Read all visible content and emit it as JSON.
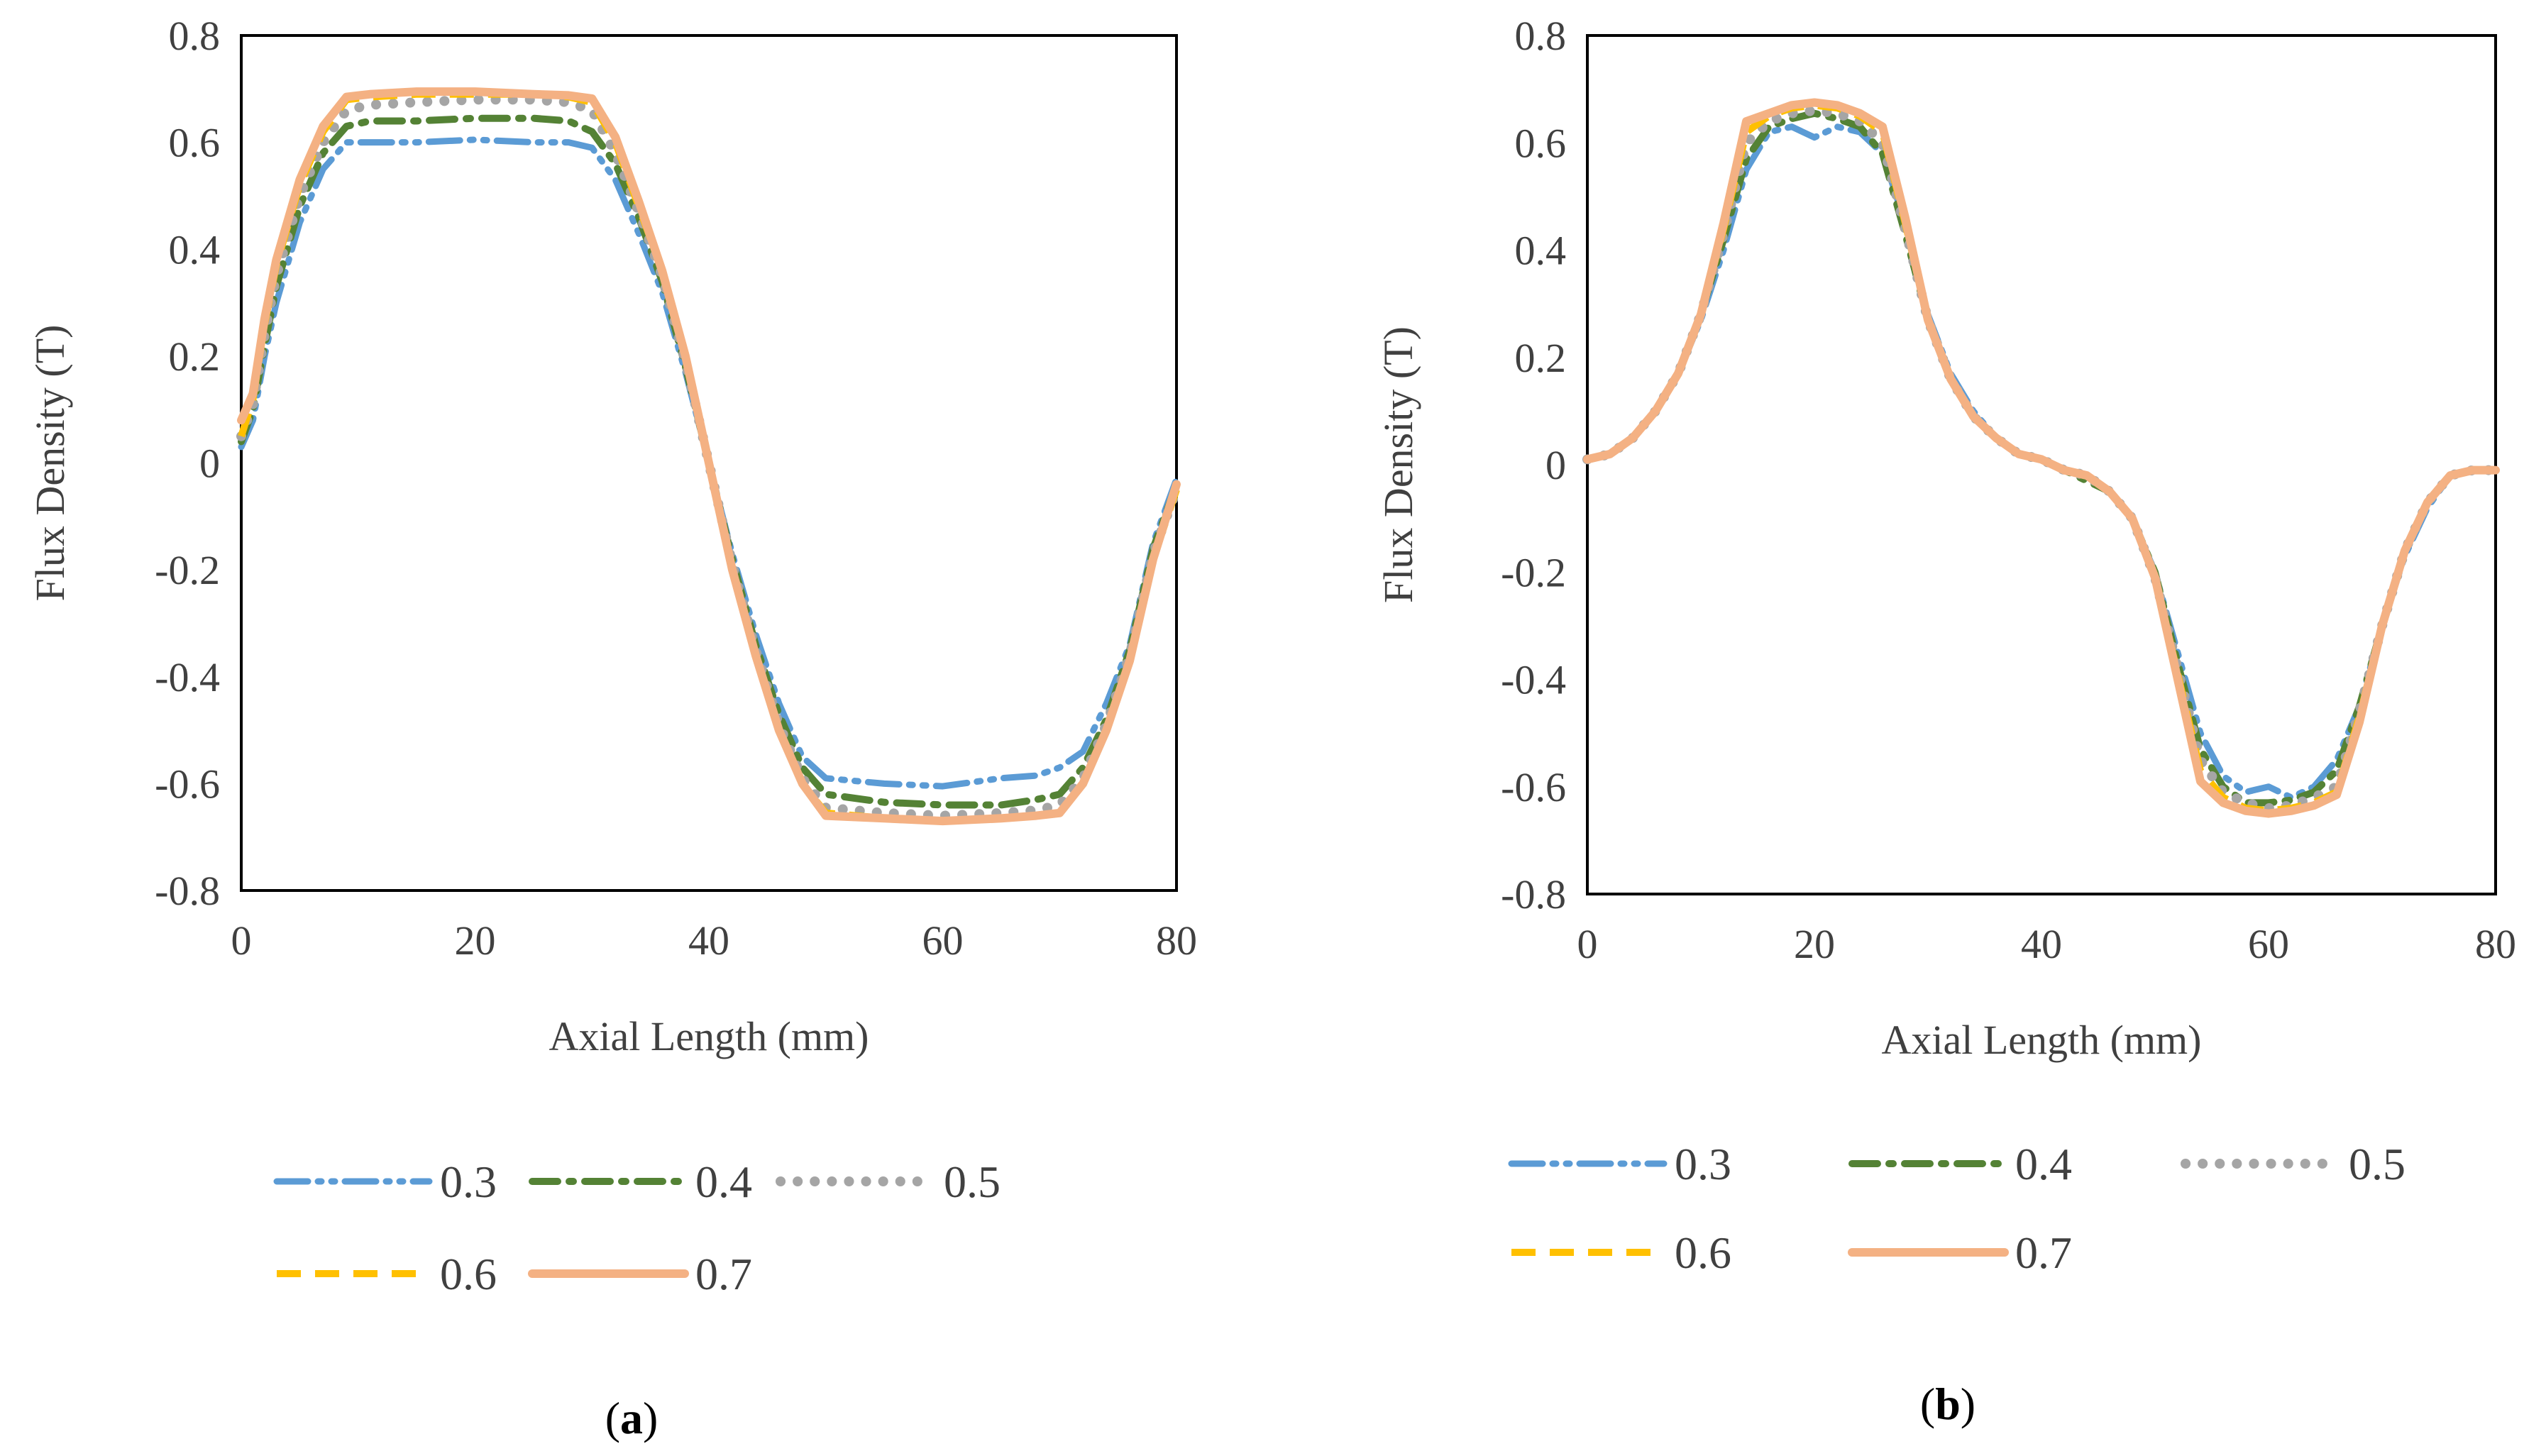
{
  "figure": {
    "panels": [
      {
        "caption_letter": "a"
      },
      {
        "caption_letter": "b"
      }
    ]
  },
  "colors": {
    "0.3": "#5B9BD5",
    "0.4": "#548235",
    "0.5": "#A5A5A5",
    "0.6": "#FFC000",
    "0.7": "#F4B183",
    "axis": "#000000",
    "text": "#404040"
  },
  "chart_data": [
    {
      "type": "line",
      "title": "",
      "xlabel": "Axial Length (mm)",
      "ylabel": "Flux Density (T)",
      "xlim": [
        0,
        80
      ],
      "ylim": [
        -0.8,
        0.8
      ],
      "xticks": [
        0,
        20,
        40,
        60,
        80
      ],
      "xtick_labels": [
        "0",
        "20",
        "40",
        "60",
        "80"
      ],
      "yticks": [
        0.8,
        0.6,
        0.4,
        0.2,
        0,
        -0.2,
        -0.4,
        -0.6,
        -0.8
      ],
      "ytick_labels": [
        "0.8",
        "0.6",
        "0.4",
        "0.2",
        "0",
        "-0.2",
        "-0.4",
        "-0.6",
        "-0.8"
      ],
      "grid": false,
      "legend_position": "bottom",
      "series": [
        {
          "name": "0.3",
          "style": "long-dash-dot-dot",
          "x": [
            0,
            1,
            2,
            3,
            5,
            7,
            9,
            11,
            15,
            20,
            25,
            28,
            30,
            32,
            34,
            36,
            38,
            40,
            42,
            44,
            46,
            48,
            50,
            55,
            60,
            65,
            68,
            70,
            72,
            74,
            76,
            78,
            80
          ],
          "y": [
            0.03,
            0.08,
            0.2,
            0.3,
            0.45,
            0.55,
            0.6,
            0.6,
            0.6,
            0.605,
            0.6,
            0.6,
            0.59,
            0.53,
            0.43,
            0.32,
            0.17,
            0.0,
            -0.17,
            -0.32,
            -0.45,
            -0.55,
            -0.59,
            -0.6,
            -0.605,
            -0.59,
            -0.585,
            -0.57,
            -0.54,
            -0.45,
            -0.34,
            -0.15,
            -0.03
          ]
        },
        {
          "name": "0.4",
          "style": "dash-dot",
          "x": [
            0,
            1,
            2,
            3,
            5,
            7,
            9,
            11,
            15,
            20,
            25,
            28,
            30,
            32,
            34,
            36,
            38,
            40,
            42,
            44,
            46,
            48,
            50,
            55,
            60,
            65,
            68,
            70,
            72,
            74,
            76,
            78,
            80
          ],
          "y": [
            0.04,
            0.1,
            0.22,
            0.33,
            0.48,
            0.58,
            0.63,
            0.64,
            0.64,
            0.645,
            0.645,
            0.64,
            0.62,
            0.56,
            0.46,
            0.34,
            0.18,
            0.0,
            -0.18,
            -0.34,
            -0.47,
            -0.57,
            -0.62,
            -0.635,
            -0.64,
            -0.64,
            -0.63,
            -0.62,
            -0.57,
            -0.48,
            -0.35,
            -0.16,
            -0.04
          ]
        },
        {
          "name": "0.5",
          "style": "dotted",
          "x": [
            0,
            1,
            2,
            3,
            5,
            7,
            9,
            11,
            15,
            20,
            25,
            28,
            30,
            32,
            34,
            36,
            38,
            40,
            42,
            44,
            46,
            48,
            50,
            55,
            60,
            65,
            68,
            70,
            72,
            74,
            76,
            78,
            80
          ],
          "y": [
            0.05,
            0.11,
            0.24,
            0.35,
            0.5,
            0.6,
            0.66,
            0.67,
            0.675,
            0.68,
            0.68,
            0.675,
            0.66,
            0.58,
            0.47,
            0.35,
            0.19,
            0.0,
            -0.19,
            -0.35,
            -0.49,
            -0.59,
            -0.645,
            -0.655,
            -0.66,
            -0.655,
            -0.65,
            -0.64,
            -0.59,
            -0.49,
            -0.36,
            -0.17,
            -0.05
          ]
        },
        {
          "name": "0.6",
          "style": "dashed",
          "x": [
            0,
            1,
            2,
            3,
            5,
            7,
            9,
            11,
            15,
            20,
            25,
            28,
            30,
            32,
            34,
            36,
            38,
            40,
            42,
            44,
            46,
            48,
            50,
            55,
            60,
            65,
            68,
            70,
            72,
            74,
            76,
            78,
            80
          ],
          "y": [
            0.05,
            0.12,
            0.26,
            0.37,
            0.52,
            0.62,
            0.68,
            0.685,
            0.69,
            0.69,
            0.69,
            0.685,
            0.675,
            0.6,
            0.48,
            0.36,
            0.2,
            0.0,
            -0.2,
            -0.36,
            -0.5,
            -0.6,
            -0.655,
            -0.665,
            -0.67,
            -0.665,
            -0.66,
            -0.655,
            -0.6,
            -0.5,
            -0.37,
            -0.18,
            -0.05
          ]
        },
        {
          "name": "0.7",
          "style": "solid",
          "x": [
            0,
            1,
            2,
            3,
            5,
            7,
            9,
            11,
            15,
            20,
            25,
            28,
            30,
            32,
            34,
            36,
            38,
            40,
            42,
            44,
            46,
            48,
            50,
            55,
            60,
            65,
            68,
            70,
            72,
            74,
            76,
            78,
            80
          ],
          "y": [
            0.08,
            0.13,
            0.27,
            0.38,
            0.53,
            0.63,
            0.685,
            0.69,
            0.695,
            0.695,
            0.69,
            0.688,
            0.682,
            0.61,
            0.49,
            0.36,
            0.2,
            0.0,
            -0.2,
            -0.36,
            -0.5,
            -0.6,
            -0.66,
            -0.665,
            -0.67,
            -0.665,
            -0.66,
            -0.655,
            -0.6,
            -0.5,
            -0.37,
            -0.18,
            -0.04
          ]
        }
      ]
    },
    {
      "type": "line",
      "title": "",
      "xlabel": "Axial Length (mm)",
      "ylabel": "Flux Density (T)",
      "xlim": [
        0,
        80
      ],
      "ylim": [
        -0.8,
        0.8
      ],
      "xticks": [
        0,
        20,
        40,
        60,
        80
      ],
      "xtick_labels": [
        "0",
        "20",
        "40",
        "60",
        "80"
      ],
      "yticks": [
        0.8,
        0.6,
        0.4,
        0.2,
        0,
        -0.2,
        -0.4,
        -0.6,
        -0.8
      ],
      "ytick_labels": [
        "0.8",
        "0.6",
        "0.4",
        "0.2",
        "0",
        "-0.2",
        "-0.4",
        "-0.6",
        "-0.8"
      ],
      "grid": false,
      "legend_position": "bottom",
      "series": [
        {
          "name": "0.3",
          "style": "long-dash-dot-dot",
          "x": [
            0,
            2,
            4,
            6,
            8,
            10,
            12,
            14,
            16,
            18,
            20,
            22,
            24,
            26,
            28,
            30,
            32,
            34,
            36,
            38,
            40,
            42,
            44,
            46,
            48,
            50,
            52,
            54,
            56,
            58,
            60,
            62,
            64,
            66,
            68,
            70,
            72,
            74,
            76,
            78,
            80
          ],
          "y": [
            0.01,
            0.02,
            0.05,
            0.1,
            0.17,
            0.27,
            0.4,
            0.55,
            0.62,
            0.63,
            0.61,
            0.63,
            0.62,
            0.58,
            0.45,
            0.28,
            0.17,
            0.1,
            0.05,
            0.02,
            0.01,
            -0.01,
            -0.02,
            -0.05,
            -0.1,
            -0.2,
            -0.35,
            -0.5,
            -0.58,
            -0.61,
            -0.6,
            -0.62,
            -0.6,
            -0.55,
            -0.45,
            -0.3,
            -0.17,
            -0.08,
            -0.02,
            -0.01,
            -0.01
          ]
        },
        {
          "name": "0.4",
          "style": "dash-dot",
          "x": [
            0,
            2,
            4,
            6,
            8,
            10,
            12,
            14,
            16,
            18,
            20,
            22,
            24,
            26,
            28,
            30,
            32,
            34,
            36,
            38,
            40,
            42,
            44,
            46,
            48,
            50,
            52,
            54,
            56,
            58,
            60,
            62,
            64,
            66,
            68,
            70,
            72,
            74,
            76,
            78,
            80
          ],
          "y": [
            0.01,
            0.02,
            0.05,
            0.1,
            0.17,
            0.28,
            0.42,
            0.57,
            0.63,
            0.645,
            0.655,
            0.645,
            0.63,
            0.58,
            0.43,
            0.27,
            0.16,
            0.09,
            0.05,
            0.02,
            0.01,
            -0.01,
            -0.03,
            -0.05,
            -0.1,
            -0.2,
            -0.37,
            -0.53,
            -0.6,
            -0.63,
            -0.63,
            -0.625,
            -0.61,
            -0.57,
            -0.45,
            -0.3,
            -0.16,
            -0.07,
            -0.02,
            -0.01,
            -0.01
          ]
        },
        {
          "name": "0.5",
          "style": "dotted",
          "x": [
            0,
            2,
            4,
            6,
            8,
            10,
            12,
            14,
            16,
            18,
            20,
            22,
            24,
            26,
            28,
            30,
            32,
            34,
            36,
            38,
            40,
            42,
            44,
            46,
            48,
            50,
            52,
            54,
            56,
            58,
            60,
            62,
            64,
            66,
            68,
            70,
            72,
            74,
            76,
            78,
            80
          ],
          "y": [
            0.01,
            0.02,
            0.05,
            0.1,
            0.17,
            0.28,
            0.43,
            0.6,
            0.64,
            0.655,
            0.66,
            0.655,
            0.64,
            0.6,
            0.44,
            0.27,
            0.16,
            0.09,
            0.05,
            0.02,
            0.01,
            -0.01,
            -0.02,
            -0.05,
            -0.1,
            -0.21,
            -0.38,
            -0.55,
            -0.61,
            -0.63,
            -0.64,
            -0.635,
            -0.62,
            -0.6,
            -0.46,
            -0.3,
            -0.16,
            -0.07,
            -0.02,
            -0.01,
            -0.01
          ]
        },
        {
          "name": "0.6",
          "style": "dashed",
          "x": [
            0,
            2,
            4,
            6,
            8,
            10,
            12,
            14,
            16,
            18,
            20,
            22,
            24,
            26,
            28,
            30,
            32,
            34,
            36,
            38,
            40,
            42,
            44,
            46,
            48,
            50,
            52,
            54,
            56,
            58,
            60,
            62,
            64,
            66,
            68,
            70,
            72,
            74,
            76,
            78,
            80
          ],
          "y": [
            0.01,
            0.02,
            0.05,
            0.1,
            0.17,
            0.28,
            0.44,
            0.62,
            0.65,
            0.665,
            0.67,
            0.665,
            0.65,
            0.62,
            0.45,
            0.27,
            0.16,
            0.09,
            0.05,
            0.02,
            0.01,
            -0.01,
            -0.02,
            -0.05,
            -0.1,
            -0.21,
            -0.39,
            -0.57,
            -0.62,
            -0.64,
            -0.645,
            -0.64,
            -0.63,
            -0.61,
            -0.47,
            -0.3,
            -0.16,
            -0.07,
            -0.02,
            -0.01,
            -0.01
          ]
        },
        {
          "name": "0.7",
          "style": "solid",
          "x": [
            0,
            2,
            4,
            6,
            8,
            10,
            12,
            14,
            16,
            18,
            20,
            22,
            24,
            26,
            28,
            30,
            32,
            34,
            36,
            38,
            40,
            42,
            44,
            46,
            48,
            50,
            52,
            54,
            56,
            58,
            60,
            62,
            64,
            66,
            68,
            70,
            72,
            74,
            76,
            78,
            80
          ],
          "y": [
            0.01,
            0.02,
            0.05,
            0.1,
            0.17,
            0.28,
            0.45,
            0.64,
            0.655,
            0.67,
            0.675,
            0.67,
            0.655,
            0.63,
            0.46,
            0.27,
            0.16,
            0.09,
            0.05,
            0.02,
            0.01,
            -0.01,
            -0.02,
            -0.05,
            -0.1,
            -0.21,
            -0.4,
            -0.59,
            -0.63,
            -0.645,
            -0.65,
            -0.645,
            -0.635,
            -0.615,
            -0.48,
            -0.3,
            -0.16,
            -0.07,
            -0.02,
            -0.01,
            -0.01
          ]
        }
      ]
    }
  ]
}
